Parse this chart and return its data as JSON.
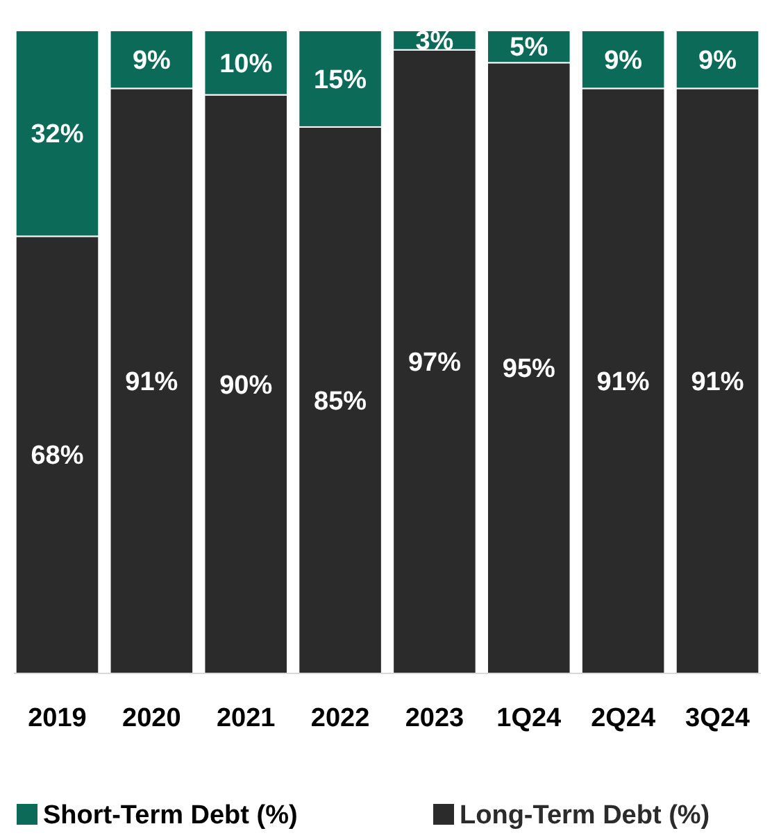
{
  "chart_data": {
    "type": "bar",
    "stacked": true,
    "categories": [
      "2019",
      "2020",
      "2021",
      "2022",
      "2023",
      "1Q24",
      "2Q24",
      "3Q24"
    ],
    "series": [
      {
        "name": "Long-Term Debt (%)",
        "color": "#2b2b2b",
        "values": [
          68,
          91,
          90,
          85,
          97,
          95,
          91,
          91
        ],
        "value_labels": [
          "68%",
          "91%",
          "90%",
          "85%",
          "97%",
          "95%",
          "91%",
          "91%"
        ]
      },
      {
        "name": "Short-Term Debt (%)",
        "color": "#0b6b58",
        "values": [
          32,
          9,
          10,
          15,
          3,
          5,
          9,
          9
        ],
        "value_labels": [
          "32%",
          "9%",
          "10%",
          "15%",
          "3%",
          "5%",
          "9%",
          "9%"
        ]
      }
    ],
    "legend": "bottom"
  }
}
